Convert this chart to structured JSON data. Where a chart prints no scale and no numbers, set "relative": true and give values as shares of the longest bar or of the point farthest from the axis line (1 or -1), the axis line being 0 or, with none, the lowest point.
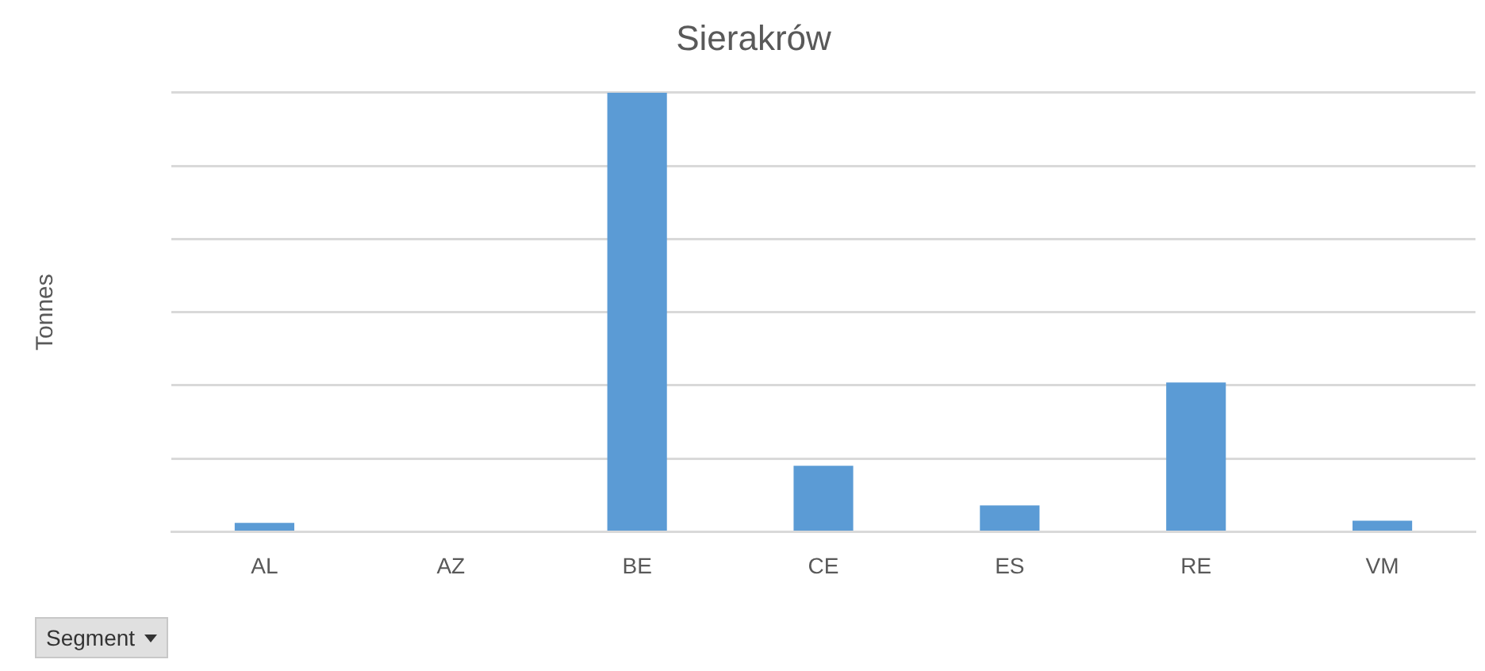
{
  "chart_data": {
    "type": "bar",
    "title": "Sierakrów",
    "ylabel": "Tonnes",
    "categories": [
      "AL",
      "AZ",
      "BE",
      "CE",
      "ES",
      "RE",
      "VM"
    ],
    "values": [
      0.02,
      0,
      1,
      0.15,
      0.06,
      0.34,
      0.025
    ],
    "color": "#5b9bd5",
    "relative": true,
    "grid": "y",
    "annotations": [
      "Segment"
    ]
  }
}
